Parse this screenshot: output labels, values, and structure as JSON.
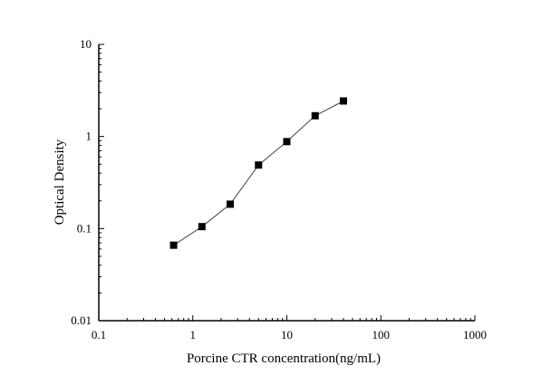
{
  "chart_data": {
    "type": "line",
    "xlabel": "Porcine CTR concentration(ng/mL)",
    "ylabel": "Optical Density",
    "xscale": "log",
    "yscale": "log",
    "xlim": [
      0.1,
      1000
    ],
    "ylim": [
      0.01,
      10
    ],
    "x_ticks": [
      "0.1",
      "1",
      "10",
      "100",
      "1000"
    ],
    "y_ticks": [
      "0.01",
      "0.1",
      "1",
      "10"
    ],
    "grid": false,
    "marker": "square",
    "color": "#000000",
    "series": [
      {
        "x": [
          0.625,
          1.25,
          2.5,
          5,
          10,
          20,
          40
        ],
        "y": [
          0.066,
          0.105,
          0.184,
          0.49,
          0.88,
          1.68,
          2.43
        ]
      }
    ]
  }
}
